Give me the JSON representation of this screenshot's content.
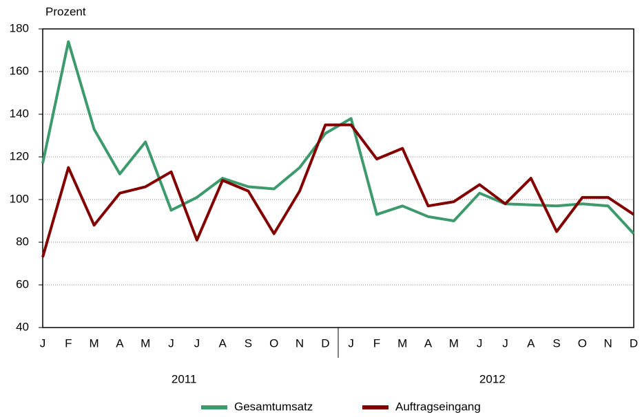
{
  "chart_data": {
    "type": "line",
    "y_label": "Prozent",
    "categories": [
      "J",
      "F",
      "M",
      "A",
      "M",
      "J",
      "J",
      "A",
      "S",
      "O",
      "N",
      "D",
      "J",
      "F",
      "M",
      "A",
      "M",
      "J",
      "J",
      "A",
      "S",
      "O",
      "N",
      "D"
    ],
    "years": [
      "2011",
      "2012"
    ],
    "series": [
      {
        "name": "Gesamtumsatz",
        "color": "#3c9a6c",
        "values": [
          117,
          174,
          133,
          112,
          127,
          95,
          101,
          110,
          106,
          105,
          115,
          131,
          138,
          93,
          97,
          92,
          90,
          103,
          98,
          97.5,
          97,
          98,
          97,
          84
        ]
      },
      {
        "name": "Auftragseingang",
        "color": "#820000",
        "values": [
          73,
          115,
          88,
          103,
          106,
          113,
          81,
          109,
          104,
          84,
          104,
          135,
          135,
          119,
          124,
          97,
          99,
          107,
          98,
          110,
          85,
          101,
          101,
          93
        ]
      }
    ],
    "ylim": [
      40,
      180
    ],
    "yticks": [
      40,
      60,
      80,
      100,
      120,
      140,
      160,
      180
    ],
    "grid": true
  }
}
